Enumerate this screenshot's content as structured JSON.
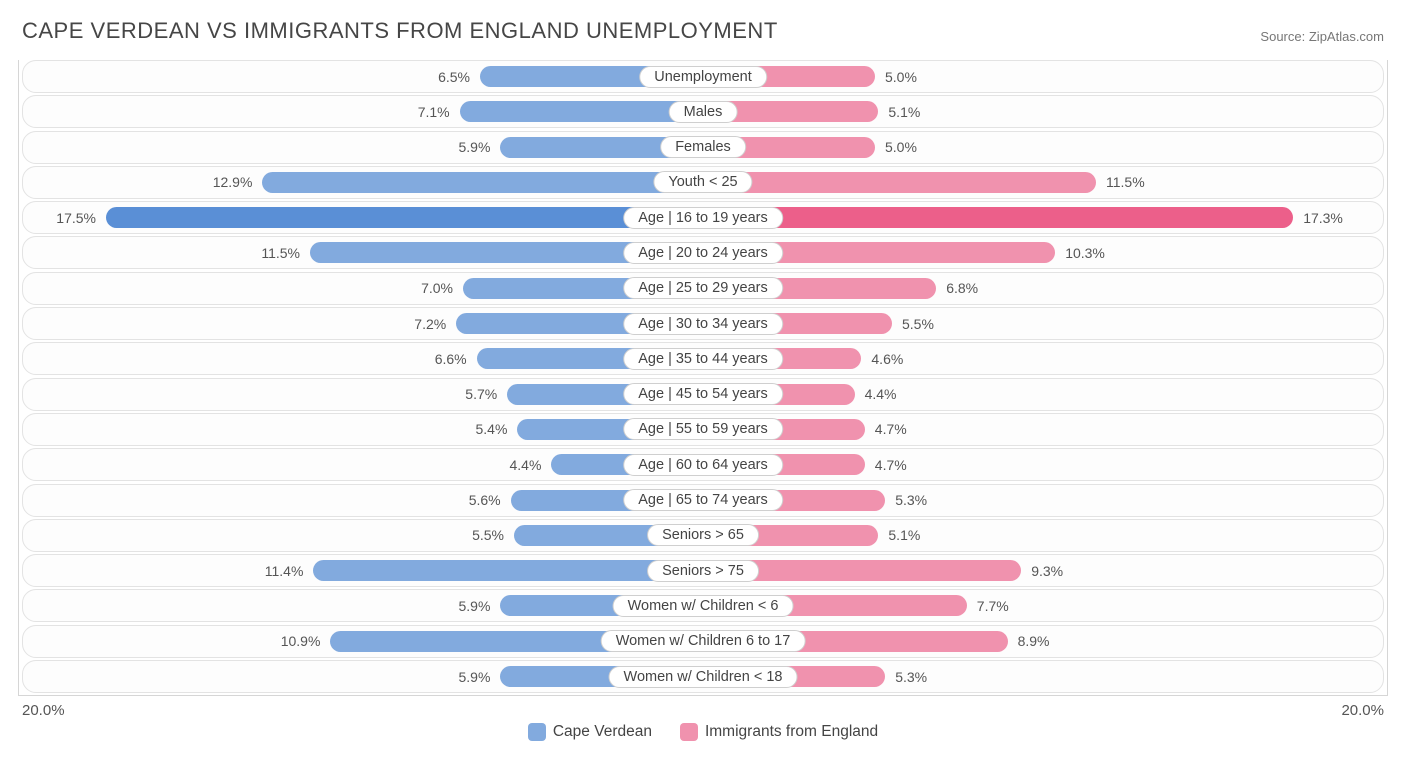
{
  "title": "CAPE VERDEAN VS IMMIGRANTS FROM ENGLAND UNEMPLOYMENT",
  "source_label": "Source:",
  "source_name": "ZipAtlas.com",
  "axis": {
    "left": "20.0%",
    "right": "20.0%",
    "max_pct": 20.0
  },
  "series": {
    "left": {
      "label": "Cape Verdean",
      "color": "#82aade",
      "highlight": "#5a8fd6"
    },
    "right": {
      "label": "Immigrants from England",
      "color": "#f092ae",
      "highlight": "#ec5f8a"
    }
  },
  "colors": {
    "row_border": "#e3e3e3",
    "chart_border": "#d6d6d6",
    "text": "#464646",
    "label_border": "#cfcfcf",
    "background": "#ffffff"
  },
  "rows": [
    {
      "label": "Unemployment",
      "left_val": 6.5,
      "left_txt": "6.5%",
      "right_val": 5.0,
      "right_txt": "5.0%"
    },
    {
      "label": "Males",
      "left_val": 7.1,
      "left_txt": "7.1%",
      "right_val": 5.1,
      "right_txt": "5.1%"
    },
    {
      "label": "Females",
      "left_val": 5.9,
      "left_txt": "5.9%",
      "right_val": 5.0,
      "right_txt": "5.0%"
    },
    {
      "label": "Youth < 25",
      "left_val": 12.9,
      "left_txt": "12.9%",
      "right_val": 11.5,
      "right_txt": "11.5%"
    },
    {
      "label": "Age | 16 to 19 years",
      "left_val": 17.5,
      "left_txt": "17.5%",
      "right_val": 17.3,
      "right_txt": "17.3%",
      "highlight": true
    },
    {
      "label": "Age | 20 to 24 years",
      "left_val": 11.5,
      "left_txt": "11.5%",
      "right_val": 10.3,
      "right_txt": "10.3%"
    },
    {
      "label": "Age | 25 to 29 years",
      "left_val": 7.0,
      "left_txt": "7.0%",
      "right_val": 6.8,
      "right_txt": "6.8%"
    },
    {
      "label": "Age | 30 to 34 years",
      "left_val": 7.2,
      "left_txt": "7.2%",
      "right_val": 5.5,
      "right_txt": "5.5%"
    },
    {
      "label": "Age | 35 to 44 years",
      "left_val": 6.6,
      "left_txt": "6.6%",
      "right_val": 4.6,
      "right_txt": "4.6%"
    },
    {
      "label": "Age | 45 to 54 years",
      "left_val": 5.7,
      "left_txt": "5.7%",
      "right_val": 4.4,
      "right_txt": "4.4%"
    },
    {
      "label": "Age | 55 to 59 years",
      "left_val": 5.4,
      "left_txt": "5.4%",
      "right_val": 4.7,
      "right_txt": "4.7%"
    },
    {
      "label": "Age | 60 to 64 years",
      "left_val": 4.4,
      "left_txt": "4.4%",
      "right_val": 4.7,
      "right_txt": "4.7%"
    },
    {
      "label": "Age | 65 to 74 years",
      "left_val": 5.6,
      "left_txt": "5.6%",
      "right_val": 5.3,
      "right_txt": "5.3%"
    },
    {
      "label": "Seniors > 65",
      "left_val": 5.5,
      "left_txt": "5.5%",
      "right_val": 5.1,
      "right_txt": "5.1%"
    },
    {
      "label": "Seniors > 75",
      "left_val": 11.4,
      "left_txt": "11.4%",
      "right_val": 9.3,
      "right_txt": "9.3%"
    },
    {
      "label": "Women w/ Children < 6",
      "left_val": 5.9,
      "left_txt": "5.9%",
      "right_val": 7.7,
      "right_txt": "7.7%"
    },
    {
      "label": "Women w/ Children 6 to 17",
      "left_val": 10.9,
      "left_txt": "10.9%",
      "right_val": 8.9,
      "right_txt": "8.9%"
    },
    {
      "label": "Women w/ Children < 18",
      "left_val": 5.9,
      "left_txt": "5.9%",
      "right_val": 5.3,
      "right_txt": "5.3%"
    }
  ]
}
